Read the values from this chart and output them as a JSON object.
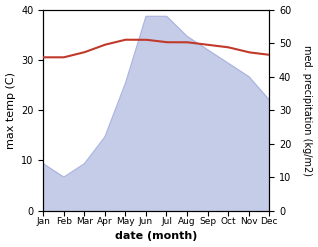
{
  "months": [
    "Jan",
    "Feb",
    "Mar",
    "Apr",
    "May",
    "Jun",
    "Jul",
    "Aug",
    "Sep",
    "Oct",
    "Nov",
    "Dec"
  ],
  "max_temp": [
    30.5,
    30.5,
    31.5,
    33.0,
    34.0,
    34.0,
    33.5,
    33.5,
    33.0,
    32.5,
    31.5,
    31.0
  ],
  "precipitation": [
    14,
    10,
    14,
    22,
    38,
    58,
    58,
    52,
    48,
    44,
    40,
    33
  ],
  "temp_color": "#c0392b",
  "precip_fill_color": "#c5cce8",
  "precip_line_color": "#aab4e0",
  "background_color": "#ffffff",
  "ylabel_left": "max temp (C)",
  "ylabel_right": "med. precipitation (kg/m2)",
  "xlabel": "date (month)",
  "ylim_left": [
    0,
    40
  ],
  "ylim_right": [
    0,
    60
  ],
  "yticks_left": [
    0,
    10,
    20,
    30,
    40
  ],
  "yticks_right": [
    0,
    10,
    20,
    30,
    40,
    50,
    60
  ]
}
